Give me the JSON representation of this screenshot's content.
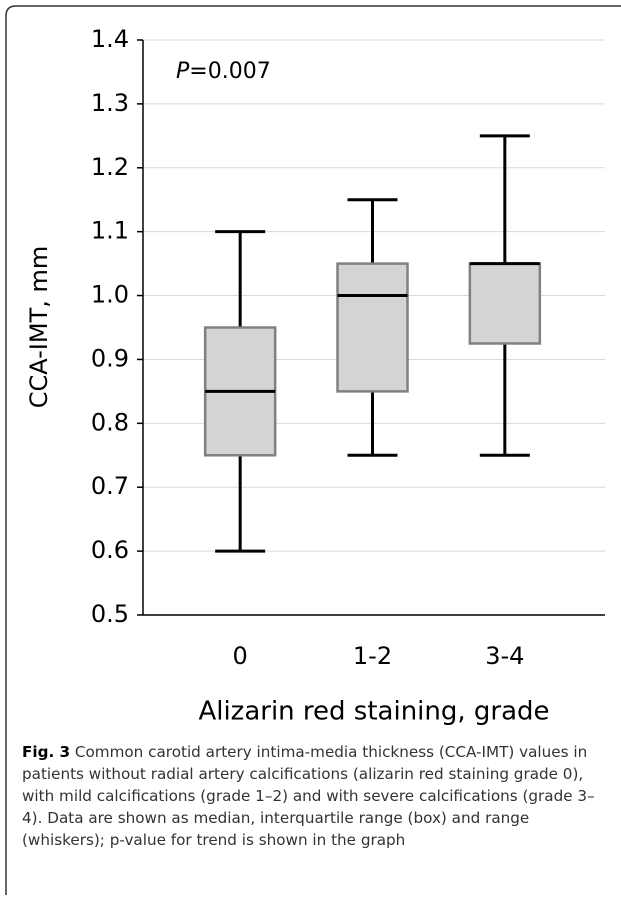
{
  "chart_data": {
    "type": "box",
    "annotation_italic": "P",
    "annotation": "=0.007",
    "y_label": "CCA-IMT, mm",
    "x_label": "Alizarin red staining, grade",
    "categories": [
      "0",
      "1-2",
      "3-4"
    ],
    "boxes": [
      {
        "min": 0.6,
        "q1": 0.75,
        "median": 0.85,
        "q3": 0.95,
        "max": 1.1
      },
      {
        "min": 0.75,
        "q1": 0.85,
        "median": 1.0,
        "q3": 1.05,
        "max": 1.15
      },
      {
        "min": 0.75,
        "q1": 0.925,
        "median": 1.05,
        "q3": 1.05,
        "max": 1.25
      }
    ],
    "color": "#d4d4d4",
    "edge_color": "#808080",
    "ylim": [
      0.5,
      1.4
    ],
    "yticks": [
      0.5,
      0.6,
      0.7,
      0.8,
      0.9,
      {
        "value": 1.0,
        "label": "1.0"
      },
      1.1,
      1.2,
      1.3,
      1.4
    ],
    "grid": true
  },
  "caption": {
    "label": "Fig. 3",
    "text": "Common carotid artery intima-media thickness (CCA-IMT) values in patients without radial artery calcifications (alizarin red staining grade 0), with mild calcifications (grade 1–2) and with severe calcifications (grade 3–4). Data are shown as median, interquartile range (box) and range (whiskers); p-value for trend is shown in the graph"
  }
}
